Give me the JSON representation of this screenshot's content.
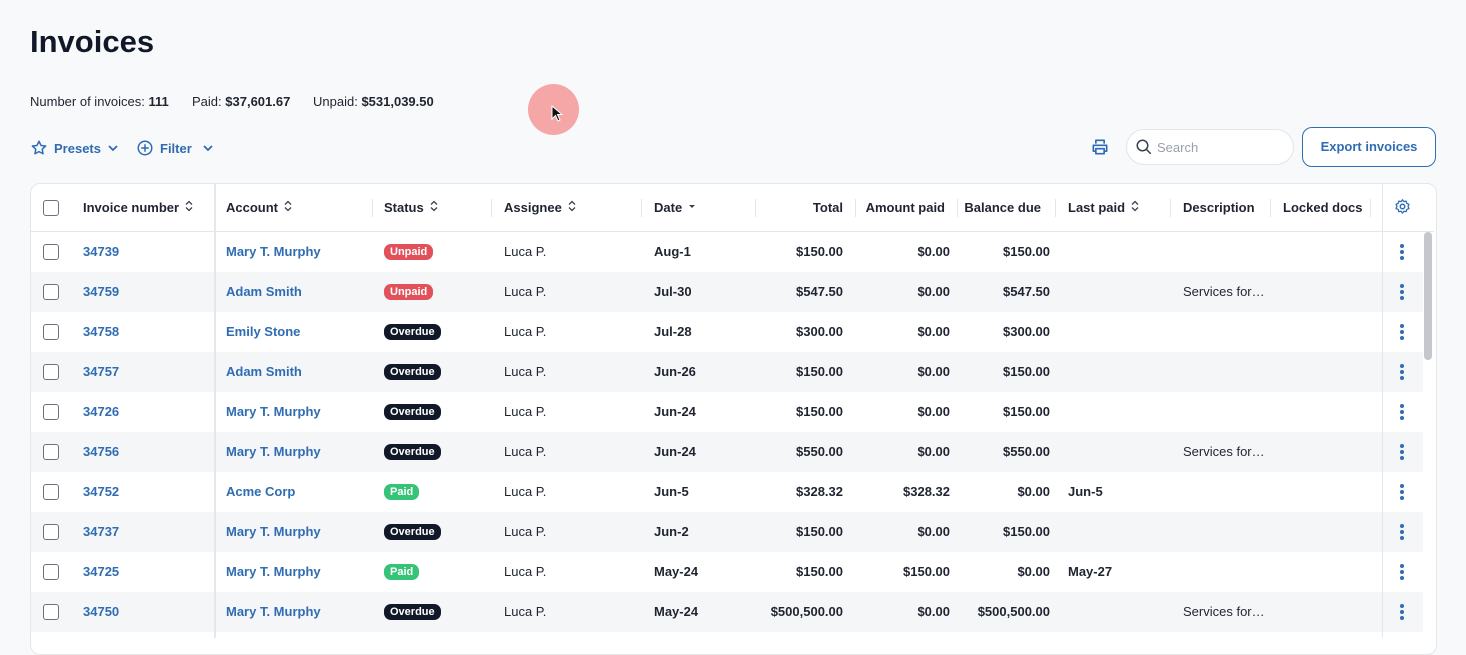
{
  "header": {
    "title": "Invoices"
  },
  "summary": [
    {
      "label": "Number of invoices:",
      "value": "111"
    },
    {
      "label": "Paid:",
      "value": "$37,601.67"
    },
    {
      "label": "Unpaid:",
      "value": "$531,039.50"
    }
  ],
  "toolbar": {
    "presets": "Presets",
    "filter": "Filter",
    "search_placeholder": "Search",
    "export": "Export invoices"
  },
  "table": {
    "columns": [
      {
        "label": "Invoice number",
        "sort": "both"
      },
      {
        "label": "Account",
        "sort": "both"
      },
      {
        "label": "Status",
        "sort": "both"
      },
      {
        "label": "Assignee",
        "sort": "both"
      },
      {
        "label": "Date",
        "sort": "desc"
      },
      {
        "label": "Total"
      },
      {
        "label": "Amount paid"
      },
      {
        "label": "Balance due"
      },
      {
        "label": "Last paid",
        "sort": "both"
      },
      {
        "label": "Description"
      },
      {
        "label": "Locked docs"
      }
    ],
    "status_colors": {
      "Unpaid": "#e2515a",
      "Overdue": "#111827",
      "Paid": "#36c277"
    },
    "rows": [
      [
        "34739",
        "Mary T. Murphy",
        "Unpaid",
        "Luca P.",
        "Aug-1",
        "$150.00",
        "$0.00",
        "$150.00",
        null,
        null
      ],
      [
        "34759",
        "Adam Smith",
        "Unpaid",
        "Luca P.",
        "Jul-30",
        "$547.50",
        "$0.00",
        "$547.50",
        null,
        "Services for…"
      ],
      [
        "34758",
        "Emily Stone",
        "Overdue",
        "Luca P.",
        "Jul-28",
        "$300.00",
        "$0.00",
        "$300.00",
        null,
        null
      ],
      [
        "34757",
        "Adam Smith",
        "Overdue",
        "Luca P.",
        "Jun-26",
        "$150.00",
        "$0.00",
        "$150.00",
        null,
        null
      ],
      [
        "34726",
        "Mary T. Murphy",
        "Overdue",
        "Luca P.",
        "Jun-24",
        "$150.00",
        "$0.00",
        "$150.00",
        null,
        null
      ],
      [
        "34756",
        "Mary T. Murphy",
        "Overdue",
        "Luca P.",
        "Jun-24",
        "$550.00",
        "$0.00",
        "$550.00",
        null,
        "Services for…"
      ],
      [
        "34752",
        "Acme Corp",
        "Paid",
        "Luca P.",
        "Jun-5",
        "$328.32",
        "$328.32",
        "$0.00",
        "Jun-5",
        null
      ],
      [
        "34737",
        "Mary T. Murphy",
        "Overdue",
        "Luca P.",
        "Jun-2",
        "$150.00",
        "$0.00",
        "$150.00",
        null,
        null
      ],
      [
        "34725",
        "Mary T. Murphy",
        "Paid",
        "Luca P.",
        "May-24",
        "$150.00",
        "$150.00",
        "$0.00",
        "May-27",
        null
      ],
      [
        "34750",
        "Mary T. Murphy",
        "Overdue",
        "Luca P.",
        "May-24",
        "$500,500.00",
        "$0.00",
        "$500,500.00",
        null,
        "Services for…"
      ]
    ]
  }
}
